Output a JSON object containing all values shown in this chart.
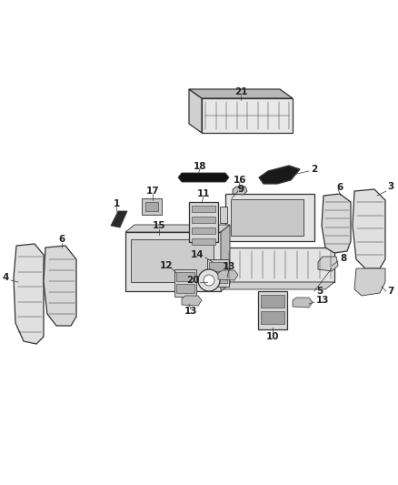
{
  "bg_color": "#ffffff",
  "fig_width": 4.38,
  "fig_height": 5.33,
  "dpi": 100,
  "lc": "#333333",
  "lc_dark": "#111111",
  "fc_light": "#e0e0e0",
  "fc_mid": "#c8c8c8",
  "fc_dark": "#1a1a1a",
  "fc_white": "#ffffff",
  "label_fontsize": 7.5,
  "label_color": "#222222"
}
